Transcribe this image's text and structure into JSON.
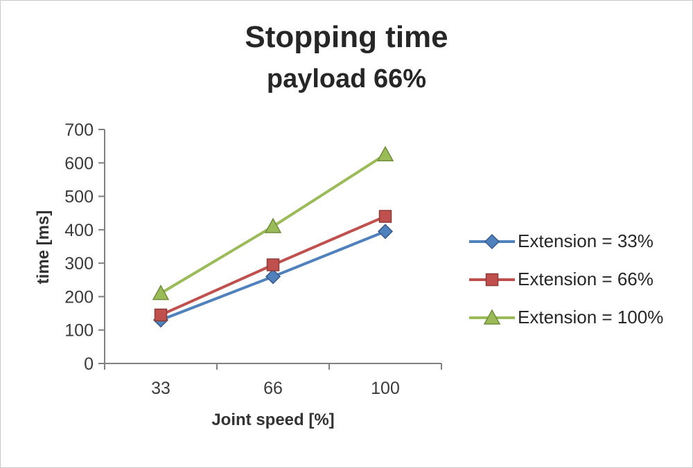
{
  "chart_data": {
    "type": "line",
    "title": "Stopping time",
    "subtitle": "payload 66%",
    "xlabel": "Joint speed [%]",
    "ylabel": "time [ms]",
    "categories": [
      "33",
      "66",
      "100"
    ],
    "ylim": [
      0,
      700
    ],
    "ytick_step": 100,
    "grid": false,
    "legend_position": "right",
    "axis_color": "#808080",
    "text_color": "#3a3a3a",
    "series": [
      {
        "name": "Extension = 33%",
        "marker": "diamond",
        "color": "#4F81BD",
        "border": "#38598A",
        "values": [
          130,
          260,
          395
        ]
      },
      {
        "name": "Extension = 66%",
        "marker": "square",
        "color": "#C0504D",
        "border": "#8E3A37",
        "values": [
          145,
          295,
          440
        ]
      },
      {
        "name": "Extension = 100%",
        "marker": "triangle",
        "color": "#9BBB59",
        "border": "#6F8C3A",
        "values": [
          210,
          410,
          625
        ]
      }
    ]
  }
}
